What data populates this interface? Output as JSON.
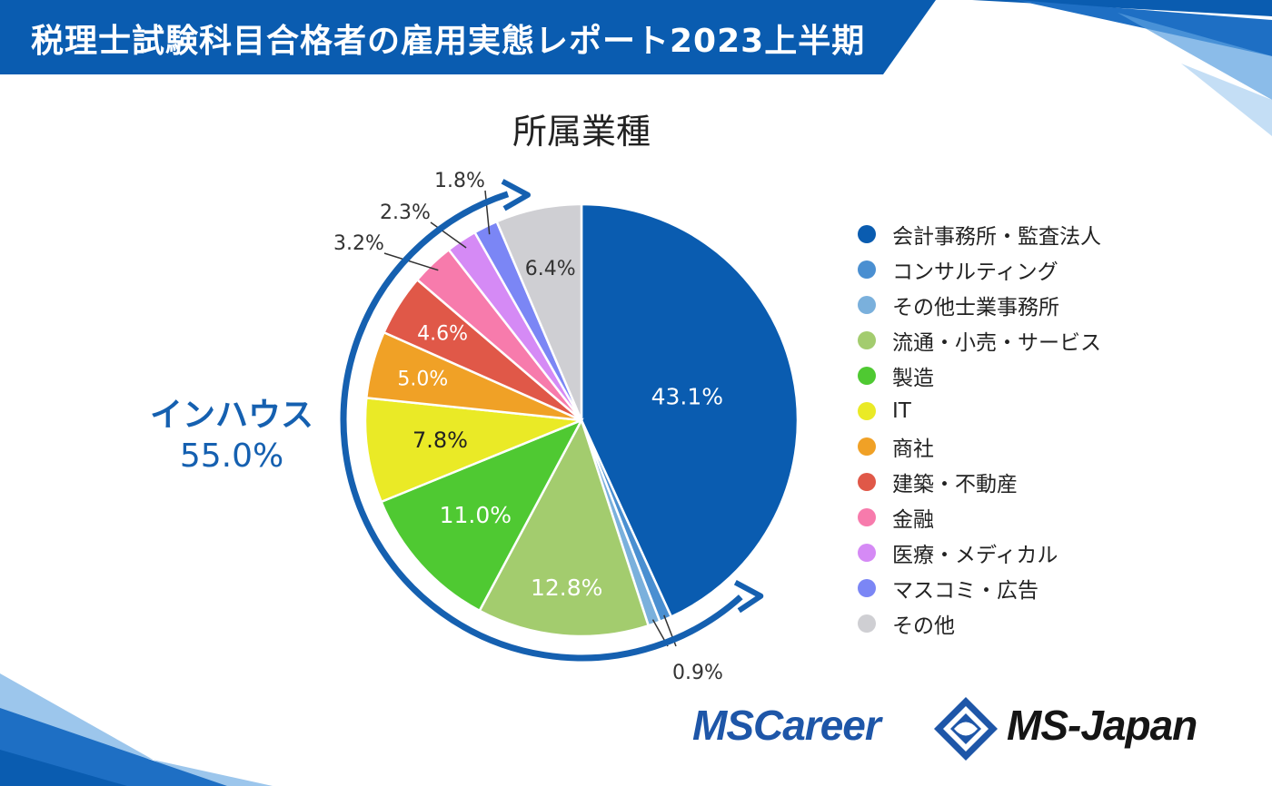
{
  "header": {
    "title": "税理士試験科目合格者の雇用実態レポート2023上半期"
  },
  "colors": {
    "brand_blue": "#0a5cb0",
    "accent_blue": "#1560b0"
  },
  "chart_data": {
    "type": "pie",
    "title": "所属業種",
    "direction": "clockwise from 12 o'clock",
    "categories": [
      "会計事務所・監査法人",
      "コンサルティング",
      "その他士業事務所",
      "流通・小売・サービス",
      "製造",
      "IT",
      "商社",
      "建築・不動産",
      "金融",
      "医療・メディカル",
      "マスコミ・広告",
      "その他"
    ],
    "values": [
      43.1,
      0.9,
      0.9,
      12.8,
      11.0,
      7.8,
      5.0,
      4.6,
      3.2,
      2.3,
      1.8,
      6.4
    ],
    "data_labels": [
      "43.1%",
      "",
      "",
      "12.8%",
      "11.0%",
      "7.8%",
      "5.0%",
      "4.6%",
      "3.2%",
      "2.3%",
      "1.8%",
      "6.4%"
    ],
    "callout_label": "0.9%",
    "colors": [
      "#0a5cb0",
      "#4a8fd1",
      "#7ab0dc",
      "#a3cc6e",
      "#4fc932",
      "#eaea26",
      "#f0a126",
      "#e05848",
      "#f77bac",
      "#d58af5",
      "#7b86f5",
      "#cfcfd3"
    ],
    "group_annotation": {
      "label": "インハウス",
      "value": "55.0%"
    },
    "legend": {
      "position": "right",
      "entries": [
        "会計事務所・監査法人",
        "コンサルティング",
        "その他士業事務所",
        "流通・小売・サービス",
        "製造",
        "IT",
        "商社",
        "建築・不動産",
        "金融",
        "医療・メディカル",
        "マスコミ・広告",
        "その他"
      ]
    }
  },
  "logos": {
    "left": "MSCareer",
    "right": "MS-Japan"
  }
}
